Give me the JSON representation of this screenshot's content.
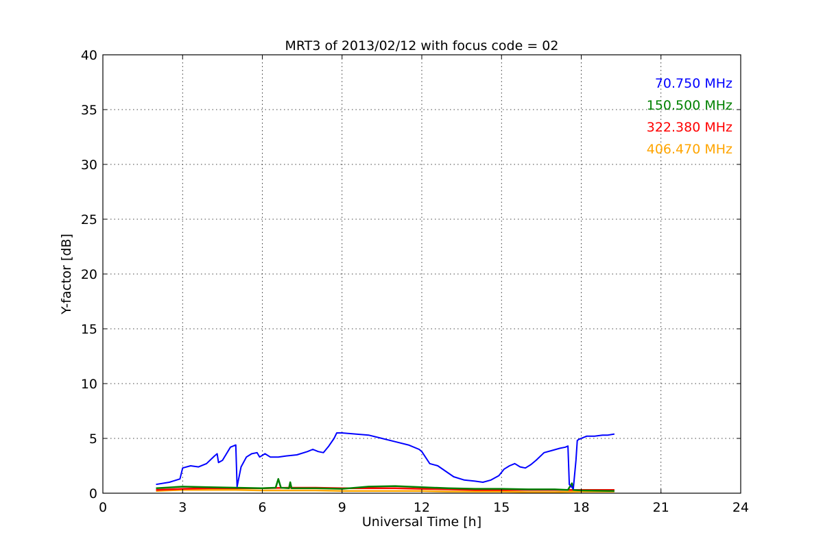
{
  "chart_data": {
    "type": "line",
    "title": "MRT3 of 2013/02/12 with focus code = 02",
    "xlabel": "Universal Time [h]",
    "ylabel": "Y-factor [dB]",
    "xlim": [
      0,
      24
    ],
    "ylim": [
      0,
      40
    ],
    "xticks": [
      0,
      3,
      6,
      9,
      12,
      15,
      18,
      21,
      24
    ],
    "yticks": [
      0,
      5,
      10,
      15,
      20,
      25,
      30,
      35,
      40
    ],
    "grid": true,
    "legend_placement": "top-right",
    "series": [
      {
        "name": "70.750 MHz",
        "color": "#0000ff",
        "x": [
          2.0,
          2.5,
          2.9,
          3.0,
          3.3,
          3.6,
          3.9,
          4.2,
          4.3,
          4.35,
          4.5,
          4.8,
          4.9,
          5.0,
          5.05,
          5.2,
          5.4,
          5.6,
          5.8,
          5.9,
          6.1,
          6.3,
          6.6,
          6.9,
          7.3,
          7.7,
          7.9,
          8.1,
          8.3,
          8.5,
          8.7,
          8.8,
          9.0,
          9.5,
          10.0,
          10.5,
          11.0,
          11.5,
          11.9,
          12.0,
          12.3,
          12.6,
          12.9,
          13.2,
          13.6,
          14.0,
          14.3,
          14.6,
          14.9,
          15.1,
          15.3,
          15.5,
          15.7,
          15.9,
          16.1,
          16.3,
          16.6,
          16.9,
          17.2,
          17.4,
          17.5,
          17.55,
          17.7,
          17.8,
          17.85,
          17.9,
          18.2,
          18.5,
          18.8,
          19.0,
          19.25
        ],
        "values": [
          0.8,
          1.0,
          1.3,
          2.3,
          2.5,
          2.4,
          2.7,
          3.4,
          3.6,
          2.8,
          3.0,
          4.2,
          4.3,
          4.4,
          0.6,
          2.4,
          3.3,
          3.6,
          3.7,
          3.3,
          3.6,
          3.3,
          3.3,
          3.4,
          3.5,
          3.8,
          4.0,
          3.8,
          3.7,
          4.3,
          5.0,
          5.5,
          5.5,
          5.4,
          5.3,
          5.0,
          4.7,
          4.4,
          4.0,
          3.8,
          2.7,
          2.5,
          2.0,
          1.5,
          1.2,
          1.1,
          1.0,
          1.2,
          1.6,
          2.2,
          2.5,
          2.7,
          2.4,
          2.3,
          2.6,
          3.0,
          3.7,
          3.9,
          4.1,
          4.2,
          4.3,
          0.8,
          0.4,
          3.0,
          4.8,
          4.9,
          5.2,
          5.2,
          5.3,
          5.3,
          5.4
        ]
      },
      {
        "name": "150.500 MHz",
        "color": "#008000",
        "x": [
          2.0,
          3.0,
          4.0,
          5.0,
          6.0,
          6.5,
          6.6,
          6.7,
          7.0,
          7.05,
          7.1,
          8.0,
          9.0,
          10.0,
          11.0,
          12.0,
          13.0,
          14.0,
          15.0,
          16.0,
          17.0,
          17.5,
          17.65,
          17.7,
          18.0,
          19.25
        ],
        "values": [
          0.45,
          0.6,
          0.55,
          0.5,
          0.45,
          0.5,
          1.3,
          0.5,
          0.45,
          1.0,
          0.45,
          0.45,
          0.4,
          0.6,
          0.65,
          0.55,
          0.45,
          0.4,
          0.4,
          0.35,
          0.35,
          0.3,
          0.9,
          0.3,
          0.25,
          0.2
        ]
      },
      {
        "name": "322.380 MHz",
        "color": "#ff0000",
        "x": [
          2.0,
          3.0,
          4.0,
          5.0,
          6.0,
          7.0,
          8.0,
          9.0,
          10.0,
          11.0,
          12.0,
          13.0,
          14.0,
          15.0,
          16.0,
          17.0,
          18.0,
          19.25
        ],
        "values": [
          0.3,
          0.4,
          0.45,
          0.45,
          0.45,
          0.5,
          0.5,
          0.45,
          0.45,
          0.45,
          0.4,
          0.35,
          0.3,
          0.3,
          0.3,
          0.3,
          0.3,
          0.3
        ]
      },
      {
        "name": "406.470 MHz",
        "color": "#ffa500",
        "x": [
          2.0,
          3.0,
          4.0,
          5.0,
          6.0,
          7.0,
          8.0,
          9.0,
          10.0,
          11.0,
          12.0,
          13.0,
          14.0,
          15.0,
          16.0,
          17.0,
          18.0,
          19.25
        ],
        "values": [
          0.2,
          0.3,
          0.3,
          0.3,
          0.25,
          0.25,
          0.25,
          0.2,
          0.2,
          0.2,
          0.2,
          0.15,
          0.15,
          0.15,
          0.1,
          0.1,
          0.15,
          0.15
        ]
      }
    ]
  }
}
